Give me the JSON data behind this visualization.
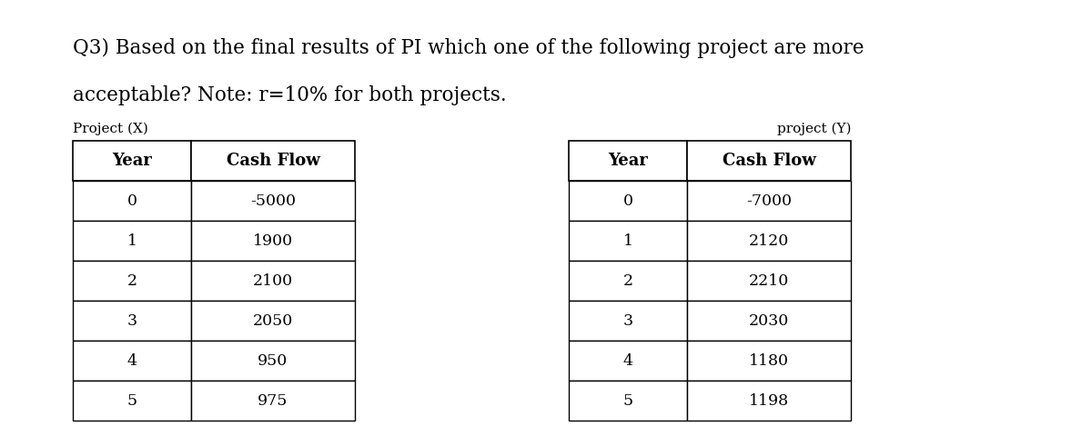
{
  "title_line1": "Q3) Based on the final results of PI which one of the following project are more",
  "title_line2": "acceptable? Note: r=10% for both projects.",
  "project_x_label": "Project (X)",
  "project_y_label": "project (Y)",
  "table_x_headers": [
    "Year",
    "Cash Flow"
  ],
  "table_y_headers": [
    "Year",
    "Cash Flow"
  ],
  "table_x_data": [
    [
      "0",
      "-5000"
    ],
    [
      "1",
      "1900"
    ],
    [
      "2",
      "2100"
    ],
    [
      "3",
      "2050"
    ],
    [
      "4",
      "950"
    ],
    [
      "5",
      "975"
    ]
  ],
  "table_y_data": [
    [
      "0",
      "-7000"
    ],
    [
      "1",
      "2120"
    ],
    [
      "2",
      "2210"
    ],
    [
      "3",
      "2030"
    ],
    [
      "4",
      "1180"
    ],
    [
      "5",
      "1198"
    ]
  ],
  "bg_color": "#ffffff",
  "text_color": "#000000",
  "table_border_color": "#000000",
  "title_fontsize": 15.5,
  "label_fontsize": 11,
  "header_fontsize": 13,
  "cell_fontsize": 12.5,
  "fig_width": 12.0,
  "fig_height": 4.91,
  "dpi": 100
}
